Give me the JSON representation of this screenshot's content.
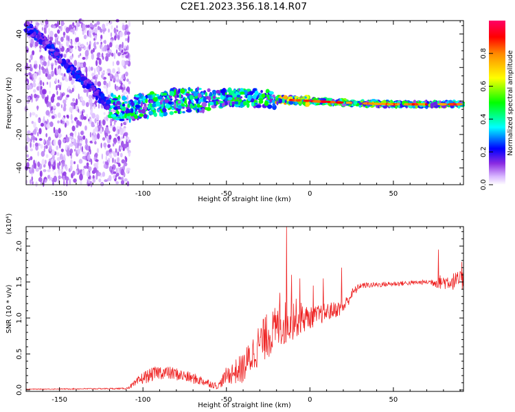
{
  "title": "C2E1.2023.356.18.14.R07",
  "colors": {
    "snr_line": "#ee2222",
    "axis": "#000000"
  },
  "chart_data": [
    {
      "type": "heatmap",
      "xlabel": "Height of straight line (km)",
      "ylabel": "Frequency (Hz)",
      "xlim": [
        -170,
        92
      ],
      "ylim": [
        -50,
        48
      ],
      "x_ticks": [
        -150,
        -100,
        -50,
        0,
        50
      ],
      "y_ticks": [
        -40,
        -20,
        0,
        20,
        40
      ],
      "grid": false,
      "colorbar": {
        "label": "Normalized spectral amplitude",
        "range": [
          0,
          1
        ],
        "ticks": [
          0.0,
          0.2,
          0.4,
          0.6,
          0.8
        ],
        "colormap": [
          "#ffffff",
          "#cfa6ff",
          "#8a2be2",
          "#0000ff",
          "#00ffff",
          "#00ff00",
          "#ffff00",
          "#ff8800",
          "#ff0000",
          "#ff0066"
        ]
      },
      "ridge": [
        {
          "x": -170,
          "f": 45
        },
        {
          "x": -160,
          "f": 36
        },
        {
          "x": -150,
          "f": 26
        },
        {
          "x": -140,
          "f": 16
        },
        {
          "x": -130,
          "f": 7
        },
        {
          "x": -120,
          "f": -3
        },
        {
          "x": -110,
          "f": -5
        },
        {
          "x": -100,
          "f": -3
        },
        {
          "x": -80,
          "f": 0
        },
        {
          "x": -60,
          "f": 1
        },
        {
          "x": -40,
          "f": 2
        },
        {
          "x": -20,
          "f": 1
        },
        {
          "x": 0,
          "f": 0
        },
        {
          "x": 20,
          "f": -1
        },
        {
          "x": 50,
          "f": -2
        },
        {
          "x": 92,
          "f": -2
        }
      ]
    },
    {
      "type": "line",
      "xlabel": "Height of straight line (km)",
      "ylabel": "SNR (10 * v/v)",
      "scale_note": "(x10⁴)",
      "xlim": [
        -170,
        92
      ],
      "ylim": [
        -0.02,
        2.27
      ],
      "x_ticks": [
        -150,
        -100,
        -50,
        0,
        50
      ],
      "y_ticks": [
        0.0,
        0.5,
        1.0,
        1.5,
        2.0
      ],
      "grid": false,
      "envelope": [
        {
          "x": -170,
          "mean": 0.01,
          "noise": 0.005
        },
        {
          "x": -110,
          "mean": 0.02,
          "noise": 0.01
        },
        {
          "x": -105,
          "mean": 0.08,
          "noise": 0.05
        },
        {
          "x": -100,
          "mean": 0.17,
          "noise": 0.09
        },
        {
          "x": -90,
          "mean": 0.25,
          "noise": 0.1
        },
        {
          "x": -80,
          "mean": 0.22,
          "noise": 0.09
        },
        {
          "x": -65,
          "mean": 0.13,
          "noise": 0.07
        },
        {
          "x": -55,
          "mean": 0.05,
          "noise": 0.04
        },
        {
          "x": -50,
          "mean": 0.2,
          "noise": 0.12
        },
        {
          "x": -40,
          "mean": 0.3,
          "noise": 0.22
        },
        {
          "x": -30,
          "mean": 0.65,
          "noise": 0.3
        },
        {
          "x": -20,
          "mean": 0.85,
          "noise": 0.32
        },
        {
          "x": -10,
          "mean": 1.0,
          "noise": 0.3
        },
        {
          "x": 0,
          "mean": 1.0,
          "noise": 0.15
        },
        {
          "x": 10,
          "mean": 1.08,
          "noise": 0.13
        },
        {
          "x": 20,
          "mean": 1.15,
          "noise": 0.1
        },
        {
          "x": 25,
          "mean": 1.33,
          "noise": 0.08
        },
        {
          "x": 30,
          "mean": 1.45,
          "noise": 0.04
        },
        {
          "x": 70,
          "mean": 1.5,
          "noise": 0.03
        },
        {
          "x": 78,
          "mean": 1.5,
          "noise": 0.1
        },
        {
          "x": 92,
          "mean": 1.52,
          "noise": 0.14
        }
      ],
      "spikes": [
        {
          "x": -14,
          "y": 2.27
        },
        {
          "x": -11,
          "y": 1.6
        },
        {
          "x": -18,
          "y": 1.35
        },
        {
          "x": -26,
          "y": 1.05
        },
        {
          "x": -6,
          "y": 1.55
        },
        {
          "x": 2,
          "y": 1.45
        },
        {
          "x": 8,
          "y": 1.55
        },
        {
          "x": 19,
          "y": 1.7
        },
        {
          "x": 77,
          "y": 1.95
        },
        {
          "x": 91,
          "y": 1.78
        }
      ]
    }
  ]
}
